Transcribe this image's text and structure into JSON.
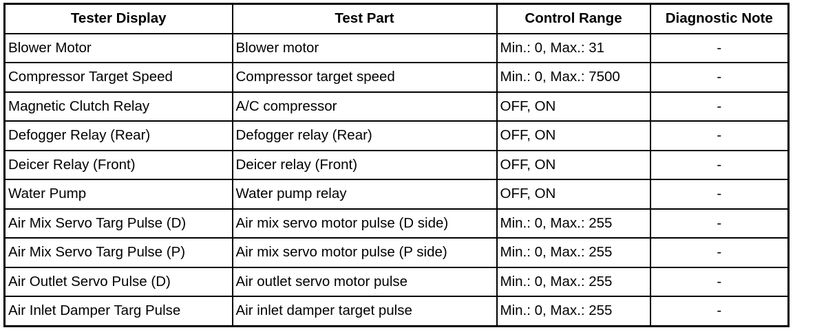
{
  "headers": [
    "Tester Display",
    "Test Part",
    "Control Range",
    "Diagnostic Note"
  ],
  "rows": [
    [
      "Blower Motor",
      "Blower motor",
      "Min.: 0, Max.: 31",
      "-"
    ],
    [
      "Compressor Target Speed",
      "Compressor target speed",
      "Min.: 0, Max.: 7500",
      "-"
    ],
    [
      "Magnetic Clutch Relay",
      "A/C compressor",
      "OFF, ON",
      "-"
    ],
    [
      "Defogger Relay (Rear)",
      "Defogger relay (Rear)",
      "OFF, ON",
      "-"
    ],
    [
      "Deicer Relay (Front)",
      "Deicer relay (Front)",
      "OFF, ON",
      "-"
    ],
    [
      "Water Pump",
      "Water pump relay",
      "OFF, ON",
      "-"
    ],
    [
      "Air Mix Servo Targ Pulse (D)",
      "Air mix servo motor pulse (D side)",
      "Min.: 0, Max.: 255",
      "-"
    ],
    [
      "Air Mix Servo Targ Pulse (P)",
      "Air mix servo motor pulse (P side)",
      "Min.: 0, Max.: 255",
      "-"
    ],
    [
      "Air Outlet Servo Pulse (D)",
      "Air outlet servo motor pulse",
      "Min.: 0, Max.: 255",
      "-"
    ],
    [
      "Air Inlet Damper Targ Pulse",
      "Air inlet damper target pulse",
      "Min.: 0, Max.: 255",
      "-"
    ]
  ]
}
